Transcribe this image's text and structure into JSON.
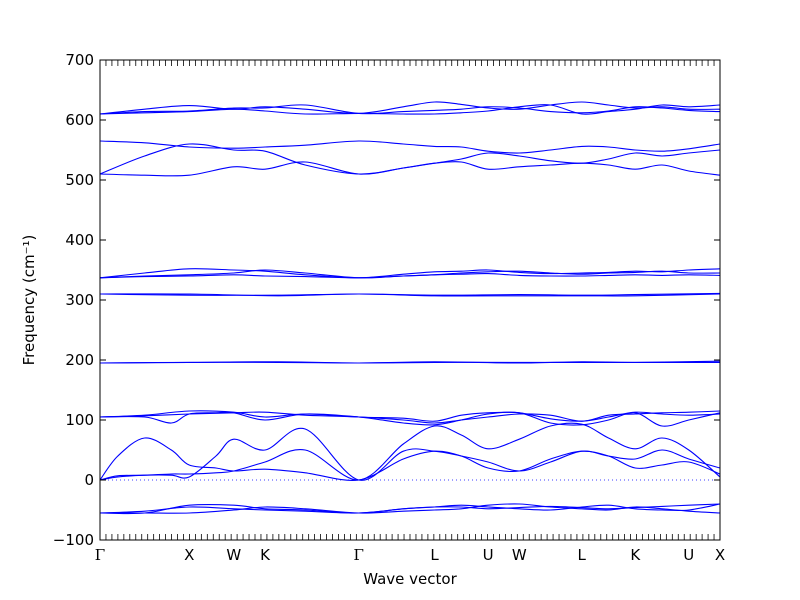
{
  "chart_data": {
    "type": "line",
    "title": "",
    "xlabel": "Wave vector",
    "ylabel": "Frequency (cm⁻¹)",
    "ylim": [
      -100,
      700
    ],
    "yticks": [
      -100,
      0,
      100,
      200,
      300,
      400,
      500,
      600,
      700
    ],
    "x_ticks": [
      {
        "x": 0.0,
        "label": "Γ"
      },
      {
        "x": 1.0,
        "label": "X"
      },
      {
        "x": 1.5,
        "label": "W"
      },
      {
        "x": 1.85,
        "label": "K"
      },
      {
        "x": 2.9,
        "label": "Γ"
      },
      {
        "x": 3.75,
        "label": "L"
      },
      {
        "x": 4.35,
        "label": "U"
      },
      {
        "x": 4.7,
        "label": "W"
      },
      {
        "x": 5.4,
        "label": "L"
      },
      {
        "x": 6.0,
        "label": "K"
      },
      {
        "x": 6.6,
        "label": "U"
      },
      {
        "x": 6.95,
        "label": "X"
      }
    ],
    "xlim": [
      0,
      6.95
    ],
    "grid": false,
    "line_color": "#0000ff",
    "zero_line": true,
    "series": [
      {
        "x": [
          0,
          0.5,
          1,
          1.5,
          1.85,
          2.3,
          2.9,
          3.4,
          3.75,
          4.05,
          4.35,
          4.7,
          5.05,
          5.4,
          5.7,
          6,
          6.3,
          6.6,
          6.95
        ],
        "values": [
          -55,
          -55,
          -42,
          -42,
          -48,
          -50,
          -55,
          -48,
          -45,
          -42,
          -45,
          -48,
          -50,
          -45,
          -42,
          -48,
          -50,
          -50,
          -40
        ]
      },
      {
        "x": [
          0,
          0.5,
          1,
          1.5,
          1.85,
          2.3,
          2.9,
          3.4,
          3.75,
          4.05,
          4.35,
          4.7,
          5.05,
          5.4,
          5.7,
          6,
          6.3,
          6.6,
          6.95
        ],
        "values": [
          -55,
          -55,
          -55,
          -50,
          -45,
          -48,
          -55,
          -52,
          -50,
          -48,
          -42,
          -40,
          -45,
          -48,
          -50,
          -45,
          -48,
          -52,
          -55
        ]
      },
      {
        "x": [
          0,
          0.5,
          1,
          1.5,
          1.85,
          2.3,
          2.9,
          3.4,
          3.75,
          4.05,
          4.35,
          4.7,
          5.05,
          5.4,
          5.7,
          6,
          6.3,
          6.6,
          6.95
        ],
        "values": [
          -55,
          -52,
          -45,
          -48,
          -50,
          -52,
          -55,
          -48,
          -45,
          -45,
          -48,
          -46,
          -44,
          -46,
          -48,
          -46,
          -44,
          -42,
          -40
        ]
      },
      {
        "x": [
          0,
          0.2,
          0.5,
          0.8,
          1,
          1.3,
          1.5,
          1.85,
          2.3,
          2.9,
          3.4,
          3.75,
          4.05,
          4.35,
          4.7,
          5.05,
          5.4,
          5.7,
          6,
          6.3,
          6.6,
          6.95
        ],
        "values": [
          0,
          40,
          70,
          50,
          25,
          20,
          15,
          18,
          12,
          0,
          35,
          48,
          40,
          20,
          15,
          35,
          48,
          40,
          20,
          25,
          30,
          10
        ]
      },
      {
        "x": [
          0,
          0.2,
          0.5,
          0.8,
          1,
          1.3,
          1.5,
          1.85,
          2.3,
          2.9,
          3.4,
          3.75,
          4.05,
          4.35,
          4.7,
          5.05,
          5.4,
          5.7,
          6,
          6.3,
          6.6,
          6.95
        ],
        "values": [
          0,
          5,
          8,
          8,
          5,
          40,
          68,
          50,
          85,
          0,
          48,
          48,
          40,
          30,
          15,
          30,
          48,
          40,
          35,
          50,
          35,
          20
        ]
      },
      {
        "x": [
          0,
          0.2,
          0.5,
          0.8,
          1,
          1.3,
          1.5,
          1.85,
          2.3,
          2.9,
          3.4,
          3.75,
          4.05,
          4.35,
          4.7,
          5.05,
          5.4,
          5.7,
          6,
          6.3,
          6.6,
          6.95
        ],
        "values": [
          0,
          7,
          8,
          10,
          10,
          12,
          15,
          30,
          50,
          0,
          60,
          90,
          75,
          52,
          68,
          90,
          93,
          70,
          52,
          70,
          50,
          5
        ]
      },
      {
        "x": [
          0,
          0.5,
          0.8,
          1,
          1.3,
          1.5,
          1.85,
          2.3,
          2.9,
          3.4,
          3.75,
          4.05,
          4.35,
          4.7,
          5.05,
          5.4,
          5.7,
          6,
          6.3,
          6.6,
          6.95
        ],
        "values": [
          105,
          105,
          95,
          110,
          112,
          112,
          100,
          110,
          105,
          95,
          92,
          100,
          110,
          112,
          95,
          92,
          100,
          112,
          90,
          100,
          112
        ]
      },
      {
        "x": [
          0,
          0.5,
          1,
          1.5,
          1.85,
          2.3,
          2.9,
          3.4,
          3.75,
          4.05,
          4.35,
          4.7,
          5.05,
          5.4,
          5.7,
          6,
          6.3,
          6.6,
          6.95
        ],
        "values": [
          105,
          108,
          115,
          113,
          105,
          110,
          105,
          103,
          98,
          108,
          112,
          112,
          102,
          98,
          105,
          113,
          110,
          108,
          110
        ]
      },
      {
        "x": [
          0,
          0.5,
          1,
          1.5,
          1.85,
          2.3,
          2.9,
          3.4,
          3.75,
          4.05,
          4.35,
          4.7,
          5.05,
          5.4,
          5.7,
          6,
          6.3,
          6.6,
          6.95
        ],
        "values": [
          105,
          107,
          110,
          112,
          113,
          108,
          105,
          100,
          95,
          100,
          105,
          110,
          108,
          98,
          108,
          110,
          112,
          113,
          115
        ]
      },
      {
        "x": [
          0,
          1,
          2,
          2.9,
          3.75,
          4.7,
          5.4,
          6,
          6.95
        ],
        "values": [
          195,
          196,
          196,
          195,
          196,
          196,
          196,
          196,
          196
        ]
      },
      {
        "x": [
          0,
          1,
          2,
          2.9,
          3.75,
          4.7,
          5.4,
          6,
          6.95
        ],
        "values": [
          195,
          196,
          197,
          195,
          197,
          195,
          197,
          196,
          198
        ]
      },
      {
        "x": [
          0,
          1,
          2,
          2.9,
          3.75,
          4.7,
          5.4,
          6,
          6.95
        ],
        "values": [
          310,
          308,
          308,
          310,
          308,
          309,
          308,
          309,
          311
        ]
      },
      {
        "x": [
          0,
          1,
          2,
          2.9,
          3.75,
          4.7,
          5.4,
          6,
          6.95
        ],
        "values": [
          310,
          310,
          307,
          310,
          307,
          307,
          307,
          307,
          310
        ]
      },
      {
        "x": [
          0,
          0.5,
          1,
          1.5,
          1.85,
          2.3,
          2.9,
          3.4,
          3.75,
          4.05,
          4.35,
          4.7,
          5.05,
          5.4,
          5.7,
          6,
          6.3,
          6.6,
          6.95
        ],
        "values": [
          337,
          345,
          352,
          350,
          348,
          342,
          337,
          343,
          347,
          348,
          350,
          346,
          344,
          345,
          346,
          348,
          347,
          350,
          352
        ]
      },
      {
        "x": [
          0,
          0.5,
          1,
          1.5,
          1.85,
          2.3,
          2.9,
          3.4,
          3.75,
          4.05,
          4.35,
          4.7,
          5.05,
          5.4,
          5.7,
          6,
          6.3,
          6.6,
          6.95
        ],
        "values": [
          337,
          340,
          342,
          345,
          350,
          345,
          337,
          340,
          342,
          345,
          347,
          348,
          345,
          343,
          345,
          346,
          348,
          345,
          345
        ]
      },
      {
        "x": [
          0,
          0.5,
          1,
          1.5,
          1.85,
          2.3,
          2.9,
          3.4,
          3.75,
          4.05,
          4.35,
          4.7,
          5.05,
          5.4,
          5.7,
          6,
          6.3,
          6.6,
          6.95
        ],
        "values": [
          337,
          339,
          340,
          342,
          340,
          339,
          337,
          340,
          342,
          343,
          344,
          341,
          340,
          340,
          341,
          342,
          341,
          342,
          341
        ]
      },
      {
        "x": [
          0,
          0.5,
          1,
          1.5,
          1.85,
          2.3,
          2.9,
          3.4,
          3.75,
          4.05,
          4.35,
          4.7,
          5.05,
          5.4,
          5.7,
          6,
          6.3,
          6.6,
          6.95
        ],
        "values": [
          510,
          508,
          508,
          522,
          518,
          530,
          510,
          520,
          528,
          535,
          545,
          540,
          532,
          528,
          535,
          545,
          540,
          545,
          550
        ]
      },
      {
        "x": [
          0,
          0.5,
          1,
          1.5,
          1.85,
          2.3,
          2.9,
          3.4,
          3.75,
          4.05,
          4.35,
          4.7,
          5.05,
          5.4,
          5.7,
          6,
          6.3,
          6.6,
          6.95
        ],
        "values": [
          510,
          540,
          560,
          550,
          548,
          525,
          510,
          520,
          528,
          530,
          518,
          522,
          525,
          528,
          525,
          518,
          525,
          515,
          508
        ]
      },
      {
        "x": [
          0,
          0.5,
          1,
          1.5,
          1.85,
          2.3,
          2.9,
          3.4,
          3.75,
          4.05,
          4.35,
          4.7,
          5.05,
          5.4,
          5.7,
          6,
          6.3,
          6.6,
          6.95
        ],
        "values": [
          565,
          562,
          555,
          553,
          555,
          558,
          565,
          560,
          556,
          555,
          548,
          545,
          550,
          556,
          555,
          550,
          548,
          552,
          560
        ]
      },
      {
        "x": [
          0,
          0.5,
          1,
          1.5,
          1.85,
          2.3,
          2.9,
          3.4,
          3.75,
          4.05,
          4.35,
          4.7,
          5.05,
          5.4,
          5.7,
          6,
          6.3,
          6.6,
          6.95
        ],
        "values": [
          610,
          618,
          624,
          618,
          622,
          618,
          611,
          622,
          630,
          626,
          620,
          618,
          625,
          630,
          625,
          620,
          622,
          618,
          618
        ]
      },
      {
        "x": [
          0,
          0.5,
          1,
          1.5,
          1.85,
          2.3,
          2.9,
          3.4,
          3.75,
          4.05,
          4.35,
          4.7,
          5.05,
          5.4,
          5.7,
          6,
          6.3,
          6.6,
          6.95
        ],
        "values": [
          610,
          614,
          615,
          620,
          620,
          625,
          611,
          614,
          616,
          618,
          622,
          620,
          614,
          612,
          615,
          622,
          620,
          616,
          614
        ]
      },
      {
        "x": [
          0,
          0.5,
          1,
          1.5,
          1.85,
          2.3,
          2.9,
          3.4,
          3.75,
          4.05,
          4.35,
          4.7,
          5.05,
          5.4,
          5.7,
          6,
          6.3,
          6.6,
          6.95
        ],
        "values": [
          610,
          612,
          614,
          618,
          615,
          610,
          611,
          610,
          610,
          612,
          615,
          622,
          625,
          610,
          614,
          618,
          625,
          622,
          625
        ]
      }
    ]
  }
}
